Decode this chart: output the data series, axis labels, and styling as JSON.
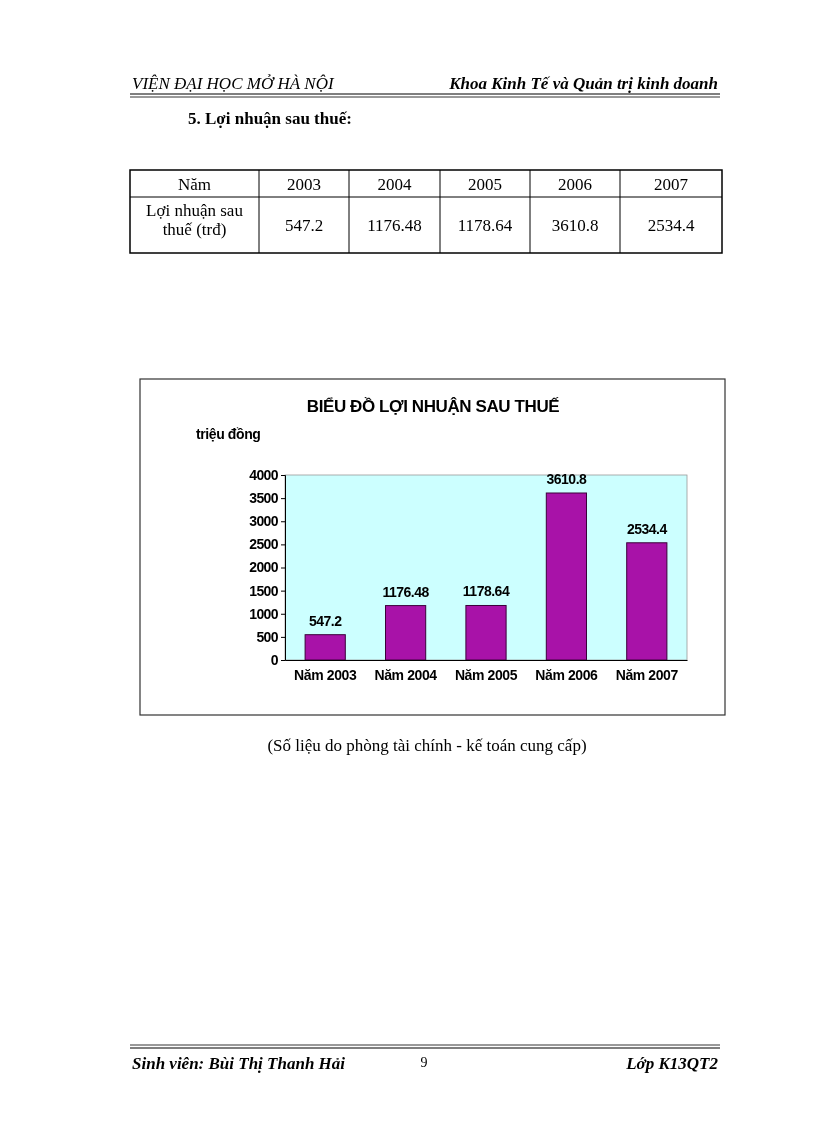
{
  "chart_data": {
    "type": "bar",
    "title": "BIỂU ĐỒ LỢI NHUẬN SAU THUẾ",
    "ylabel": "triệu đồng",
    "categories": [
      "Năm 2003",
      "Năm 2004",
      "Năm 2005",
      "Năm 2006",
      "Năm 2007"
    ],
    "values": [
      547.2,
      1176.48,
      1178.64,
      3610.8,
      2534.4
    ],
    "color": "#a812a8",
    "ylim": [
      0,
      4000
    ],
    "yticks": [
      0,
      500,
      1000,
      1500,
      2000,
      2500,
      3000,
      3500,
      4000
    ],
    "data_labels": true,
    "annotations": [
      "VIỆN ĐẠI HỌC MỞ HÀ NỘI",
      "Khoa Kinh Tế và Quản trị kinh doanh",
      "5. Lợi nhuận sau thuế:",
      "Năm",
      "2003",
      "2004",
      "2005",
      "2006",
      "2007",
      "Lợi nhuận sau thuế (trđ)",
      "547.2",
      "1176.48",
      "1178.64",
      "3610.8",
      "2534.4",
      "(Số liệu do phòng tài chính - kế toán cung cấp)",
      "Sinh viên: Bùi Thị Thanh Hải",
      "9",
      "Lớp K13QT2"
    ]
  }
}
